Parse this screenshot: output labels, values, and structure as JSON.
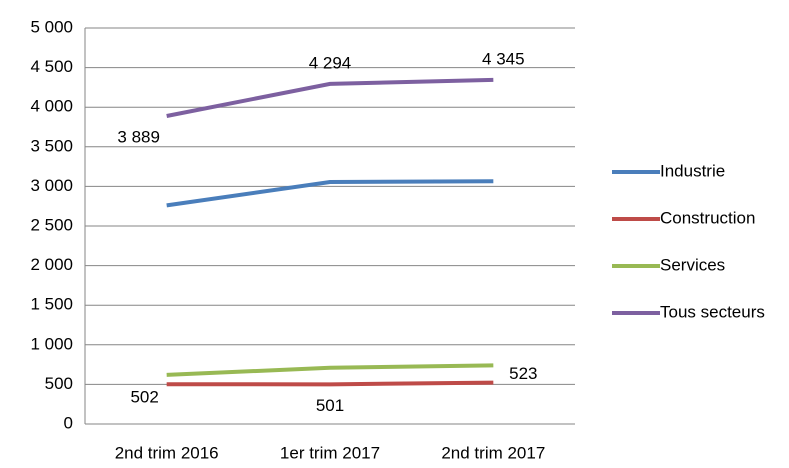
{
  "chart_data": {
    "type": "line",
    "categories": [
      "2nd trim 2016",
      "1er trim 2017",
      "2nd trim 2017"
    ],
    "series": [
      {
        "name": "Industrie",
        "color": "#4a7ebb",
        "values": [
          2760,
          3055,
          3065
        ]
      },
      {
        "name": "Construction",
        "color": "#be4b48",
        "values": [
          502,
          501,
          523
        ],
        "value_labels": [
          "502",
          "501",
          "523"
        ]
      },
      {
        "name": "Services",
        "color": "#98b954",
        "values": [
          620,
          710,
          740
        ]
      },
      {
        "name": "Tous secteurs",
        "color": "#7d60a0",
        "values": [
          3889,
          4294,
          4345
        ],
        "value_labels": [
          "3 889",
          "4 294",
          "4 345"
        ]
      }
    ],
    "ylim": [
      0,
      5000
    ],
    "yticks": [
      0,
      500,
      {
        "value": 1000,
        "label": "1 000"
      },
      {
        "value": 1500,
        "label": "1 500"
      },
      {
        "value": 2000,
        "label": "2 000"
      },
      {
        "value": 2500,
        "label": "2 500"
      },
      {
        "value": 3000,
        "label": "3 000"
      },
      {
        "value": 3500,
        "label": "3 500"
      },
      {
        "value": 4000,
        "label": "4 000"
      },
      {
        "value": 4500,
        "label": "4 500"
      },
      {
        "value": 5000,
        "label": "5 000"
      }
    ],
    "grid": true,
    "legend": "right"
  }
}
